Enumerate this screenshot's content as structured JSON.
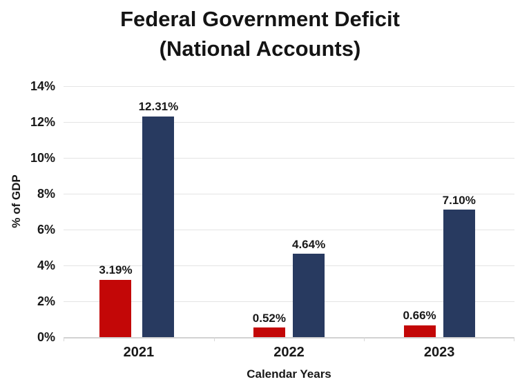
{
  "title": {
    "line1": "Federal Government Deficit",
    "line2": "(National Accounts)"
  },
  "y_axis": {
    "label": "% of GDP",
    "ticks": [
      "14%",
      "12%",
      "10%",
      "8%",
      "6%",
      "4%",
      "2%",
      "0%"
    ]
  },
  "x_axis": {
    "label": "Calendar Years"
  },
  "colors": {
    "series_red": "#c30707",
    "series_navy": "#283a60",
    "gridline": "#e4e4e4",
    "axis_line": "#d2d2d2",
    "text": "#141414",
    "background": "#ffffff"
  },
  "chart_data": {
    "type": "bar",
    "title": "Federal Government Deficit (National Accounts)",
    "xlabel": "Calendar Years",
    "ylabel": "% of GDP",
    "categories": [
      "2021",
      "2022",
      "2023"
    ],
    "series": [
      {
        "name": "red-series",
        "color": "#c30707",
        "values": [
          3.19,
          0.52,
          0.66
        ],
        "labels": [
          "3.19%",
          "0.52%",
          "0.66%"
        ]
      },
      {
        "name": "navy-series",
        "color": "#283a60",
        "values": [
          12.31,
          4.64,
          7.1
        ],
        "labels": [
          "12.31%",
          "4.64%",
          "7.10%"
        ]
      }
    ],
    "ylim": [
      0,
      14
    ],
    "ytick_step": 2,
    "grid": true,
    "legend_position": "none"
  }
}
